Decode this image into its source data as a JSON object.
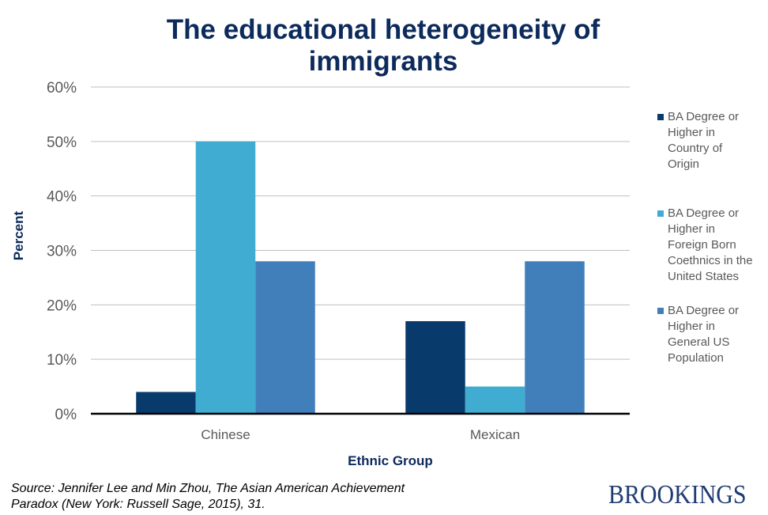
{
  "chart_data": {
    "type": "bar",
    "title": "The educational heterogeneity of immigrants",
    "xlabel": "Ethnic Group",
    "ylabel": "Percent",
    "categories": [
      "Chinese",
      "Mexican"
    ],
    "ylim": [
      0,
      60
    ],
    "yticks": [
      "0%",
      "10%",
      "20%",
      "30%",
      "40%",
      "50%",
      "60%"
    ],
    "ytick_values": [
      0,
      10,
      20,
      30,
      40,
      50,
      60
    ],
    "grid": true,
    "legend_position": "right",
    "series": [
      {
        "name": "BA Degree or Higher in Country of Origin",
        "lines": [
          "BA Degree or",
          "Higher in",
          "Country of",
          "Origin"
        ],
        "color": "#083a6b",
        "values": [
          4,
          17
        ]
      },
      {
        "name": "BA Degree or Higher in Foreign Born Coethnics in the United States",
        "lines": [
          "BA Degree or",
          "Higher in",
          "Foreign Born",
          "Coethnics in the",
          "United States"
        ],
        "color": "#40acd1",
        "values": [
          50,
          5
        ]
      },
      {
        "name": "BA Degree or Higher in General US Population",
        "lines": [
          "BA Degree or",
          "Higher in",
          "General US",
          "Population"
        ],
        "color": "#417fbb",
        "values": [
          28,
          28
        ]
      }
    ]
  },
  "source": {
    "line1": "Source: Jennifer Lee and Min Zhou, The Asian American Achievement",
    "line2": "Paradox (New York: Russell Sage, 2015), 31."
  },
  "logo": "BROOKINGS"
}
